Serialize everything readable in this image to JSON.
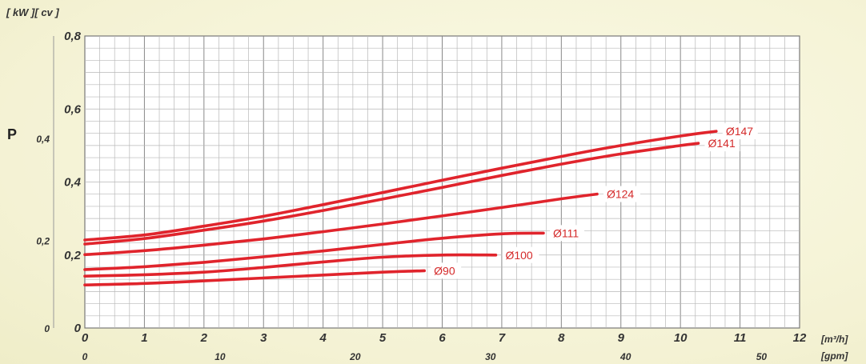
{
  "chart_data": {
    "type": "line",
    "units_label": "[ kW ][ cv ]",
    "y_symbol": "P",
    "x_unit": "[m³/h]",
    "x2_unit": "[gpm]",
    "xlim": [
      0,
      12
    ],
    "ylim": [
      0,
      0.8
    ],
    "x_ticks": [
      "0",
      "1",
      "2",
      "3",
      "4",
      "5",
      "6",
      "7",
      "8",
      "9",
      "10",
      "11",
      "12"
    ],
    "x2_ticks": [
      {
        "label": "0",
        "at": 0
      },
      {
        "label": "10",
        "at": 2.27
      },
      {
        "label": "20",
        "at": 4.54
      },
      {
        "label": "30",
        "at": 6.81
      },
      {
        "label": "40",
        "at": 9.08
      },
      {
        "label": "50",
        "at": 11.36
      }
    ],
    "y_kw_ticks": [
      {
        "label": "0",
        "at": 0
      },
      {
        "label": "0,2",
        "at": 0.2
      },
      {
        "label": "0,4",
        "at": 0.4
      },
      {
        "label": "0,6",
        "at": 0.6
      },
      {
        "label": "0,8",
        "at": 0.8
      }
    ],
    "y_cv_ticks": [
      {
        "label": "0",
        "at": 0
      },
      {
        "label": "0,2",
        "at": 0.24
      },
      {
        "label": "0,4",
        "at": 0.52
      }
    ],
    "grid": true,
    "series": [
      {
        "name": "Ø147",
        "points": [
          [
            0,
            0.241
          ],
          [
            1,
            0.255
          ],
          [
            2,
            0.279
          ],
          [
            3,
            0.306
          ],
          [
            4,
            0.338
          ],
          [
            5,
            0.371
          ],
          [
            6,
            0.405
          ],
          [
            7,
            0.438
          ],
          [
            8,
            0.47
          ],
          [
            9,
            0.5
          ],
          [
            10,
            0.526
          ],
          [
            10.6,
            0.539
          ]
        ]
      },
      {
        "name": "Ø141",
        "points": [
          [
            0,
            0.23
          ],
          [
            1,
            0.245
          ],
          [
            2,
            0.268
          ],
          [
            3,
            0.293
          ],
          [
            4,
            0.322
          ],
          [
            5,
            0.353
          ],
          [
            6,
            0.385
          ],
          [
            7,
            0.418
          ],
          [
            8,
            0.449
          ],
          [
            9,
            0.477
          ],
          [
            10,
            0.5
          ],
          [
            10.3,
            0.506
          ]
        ]
      },
      {
        "name": "Ø124",
        "points": [
          [
            0,
            0.201
          ],
          [
            1,
            0.212
          ],
          [
            2,
            0.227
          ],
          [
            3,
            0.244
          ],
          [
            4,
            0.264
          ],
          [
            5,
            0.285
          ],
          [
            6,
            0.307
          ],
          [
            7,
            0.33
          ],
          [
            8,
            0.354
          ],
          [
            8.6,
            0.367
          ]
        ]
      },
      {
        "name": "Ø111",
        "points": [
          [
            0,
            0.16
          ],
          [
            1,
            0.168
          ],
          [
            2,
            0.18
          ],
          [
            3,
            0.195
          ],
          [
            4,
            0.211
          ],
          [
            5,
            0.229
          ],
          [
            6,
            0.246
          ],
          [
            7,
            0.258
          ],
          [
            7.7,
            0.26
          ]
        ]
      },
      {
        "name": "Ø100",
        "points": [
          [
            0,
            0.142
          ],
          [
            1,
            0.146
          ],
          [
            2,
            0.153
          ],
          [
            3,
            0.166
          ],
          [
            4,
            0.181
          ],
          [
            5,
            0.194
          ],
          [
            6,
            0.2
          ],
          [
            6.9,
            0.2
          ]
        ]
      },
      {
        "name": "Ø90",
        "points": [
          [
            0,
            0.118
          ],
          [
            1,
            0.122
          ],
          [
            2,
            0.129
          ],
          [
            3,
            0.137
          ],
          [
            4,
            0.145
          ],
          [
            5,
            0.153
          ],
          [
            5.7,
            0.157
          ]
        ]
      }
    ],
    "line_color": "#e0242c"
  }
}
